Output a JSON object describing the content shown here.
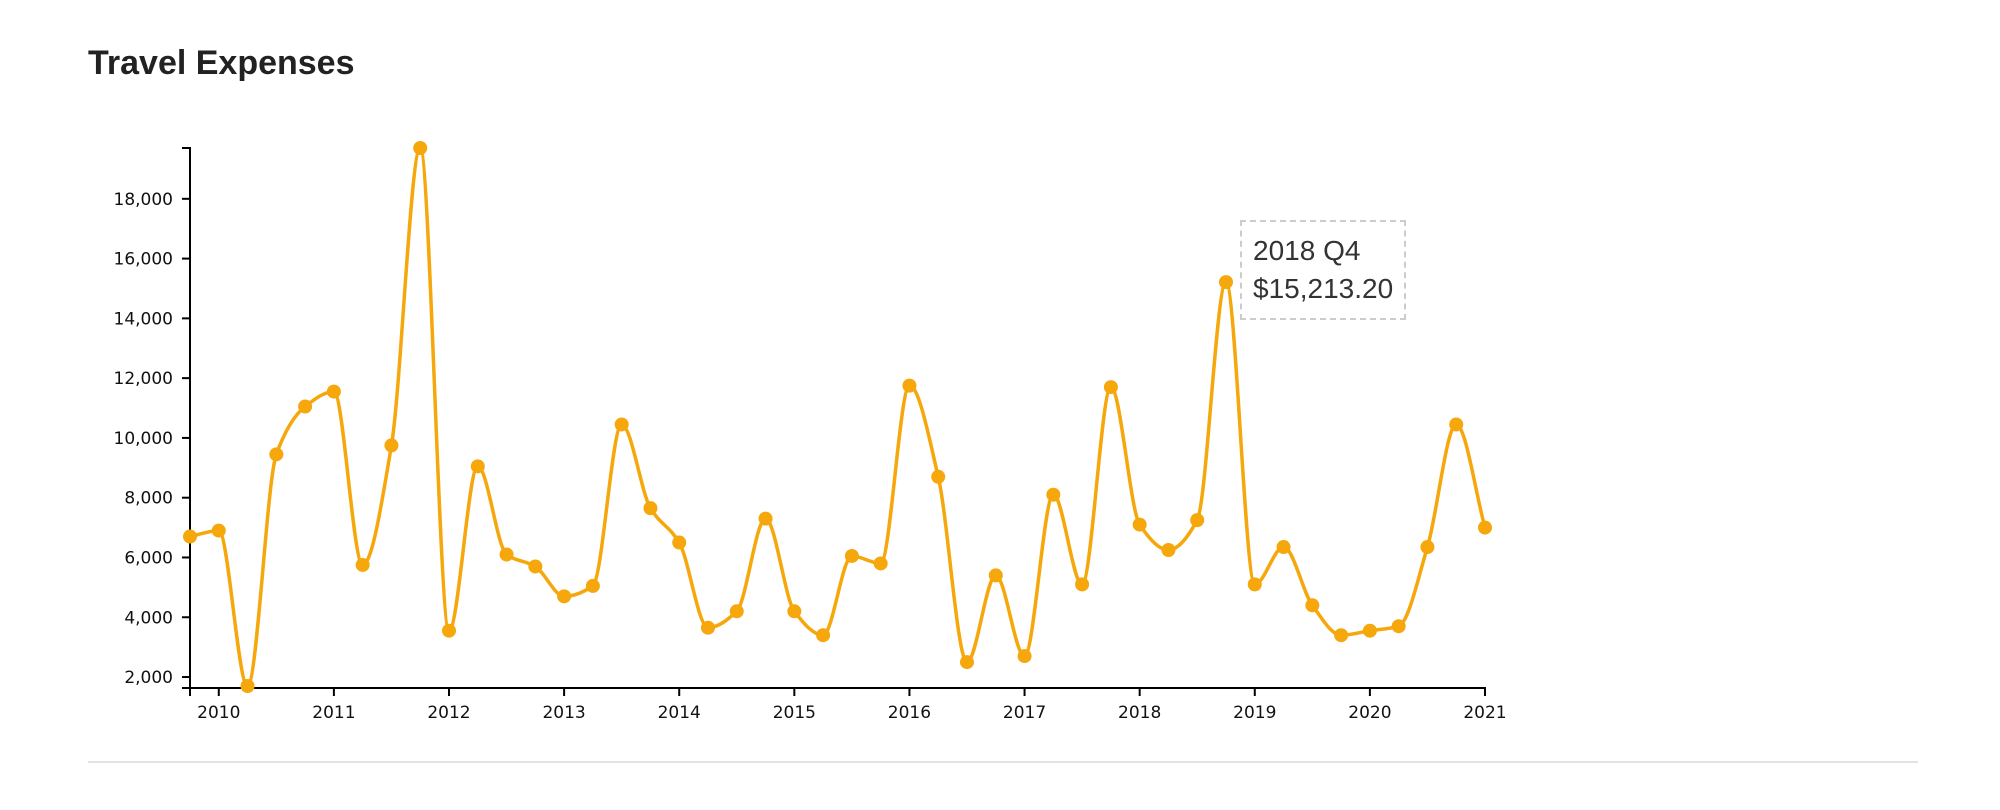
{
  "page": {
    "title": "Travel Expenses"
  },
  "tooltip": {
    "period": "2018 Q4",
    "value": "$15,213.20"
  },
  "chart_data": {
    "type": "line",
    "title": "Travel Expenses",
    "xlabel": "",
    "ylabel": "",
    "x_ticks": [
      "2010",
      "2011",
      "2012",
      "2013",
      "2014",
      "2015",
      "2016",
      "2017",
      "2018",
      "2019",
      "2020",
      "2021"
    ],
    "y_ticks": [
      2000,
      4000,
      6000,
      8000,
      10000,
      12000,
      14000,
      16000,
      18000
    ],
    "ylim": [
      1700,
      19700
    ],
    "series_color": "#f5a70b",
    "grid": false,
    "legend": "none",
    "series": [
      {
        "values": [
          6700,
          6900,
          1700,
          9450,
          11050,
          11550,
          5750,
          9750,
          19700,
          3550,
          9050,
          6100,
          5700,
          4700,
          5050,
          10450,
          7650,
          6500,
          3650,
          4200,
          7300,
          4200,
          3400,
          6050,
          5800,
          11750,
          8700,
          2500,
          5400,
          2700,
          8100,
          5100,
          11700,
          7100,
          6250,
          7250,
          15213.2,
          5100,
          6350,
          4400,
          3400,
          3550,
          3700,
          6350,
          10450,
          7000
        ]
      }
    ]
  }
}
